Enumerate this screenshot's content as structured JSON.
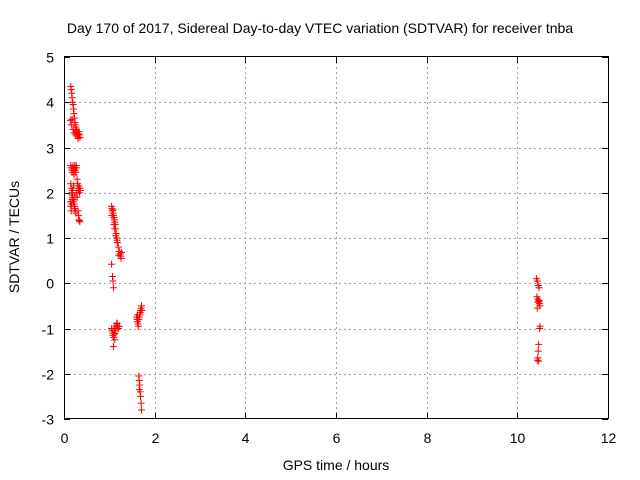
{
  "chart_data": {
    "type": "scatter",
    "title": "Day 170 of 2017, Sidereal Day-to-day VTEC variation (SDTVAR) for receiver tnba",
    "xlabel": "GPS time / hours",
    "ylabel": "SDTVAR / TECUs",
    "xlim": [
      0,
      12
    ],
    "ylim": [
      -3,
      5
    ],
    "xticks": [
      0,
      2,
      4,
      6,
      8,
      10,
      12
    ],
    "yticks": [
      -3,
      -2,
      -1,
      0,
      1,
      2,
      3,
      4,
      5
    ],
    "grid": true,
    "marker": "plus",
    "colors": {
      "marker": "#ff0000",
      "grid": "#a0a0a0",
      "axes": "#000000"
    },
    "series": [
      {
        "name": "SDTVAR",
        "points": [
          [
            0.15,
            4.35
          ],
          [
            0.16,
            4.28
          ],
          [
            0.17,
            4.2
          ],
          [
            0.18,
            4.1
          ],
          [
            0.19,
            4.0
          ],
          [
            0.2,
            3.95
          ],
          [
            0.21,
            3.85
          ],
          [
            0.22,
            3.75
          ],
          [
            0.23,
            3.65
          ],
          [
            0.24,
            3.55
          ],
          [
            0.25,
            3.5
          ],
          [
            0.26,
            3.45
          ],
          [
            0.27,
            3.4
          ],
          [
            0.28,
            3.35
          ],
          [
            0.29,
            3.3
          ],
          [
            0.3,
            3.25
          ],
          [
            0.31,
            3.2
          ],
          [
            0.32,
            3.3
          ],
          [
            0.33,
            3.35
          ],
          [
            0.34,
            3.28
          ],
          [
            0.35,
            3.22
          ],
          [
            0.14,
            3.6
          ],
          [
            0.16,
            3.5
          ],
          [
            0.18,
            3.62
          ],
          [
            0.2,
            3.4
          ],
          [
            0.22,
            3.32
          ],
          [
            0.26,
            3.28
          ],
          [
            0.28,
            3.38
          ],
          [
            0.15,
            2.6
          ],
          [
            0.16,
            2.55
          ],
          [
            0.17,
            2.5
          ],
          [
            0.18,
            2.45
          ],
          [
            0.19,
            2.55
          ],
          [
            0.2,
            2.6
          ],
          [
            0.21,
            2.5
          ],
          [
            0.22,
            2.4
          ],
          [
            0.23,
            2.55
          ],
          [
            0.24,
            2.6
          ],
          [
            0.25,
            2.5
          ],
          [
            0.26,
            2.45
          ],
          [
            0.27,
            2.6
          ],
          [
            0.28,
            2.55
          ],
          [
            0.29,
            2.3
          ],
          [
            0.3,
            2.2
          ],
          [
            0.31,
            2.1
          ],
          [
            0.32,
            2.05
          ],
          [
            0.33,
            2.15
          ],
          [
            0.34,
            2.0
          ],
          [
            0.35,
            2.1
          ],
          [
            0.36,
            2.05
          ],
          [
            0.15,
            2.2
          ],
          [
            0.16,
            2.1
          ],
          [
            0.17,
            2.0
          ],
          [
            0.18,
            1.95
          ],
          [
            0.19,
            1.9
          ],
          [
            0.2,
            1.85
          ],
          [
            0.21,
            1.8
          ],
          [
            0.22,
            1.75
          ],
          [
            0.23,
            1.7
          ],
          [
            0.24,
            1.65
          ],
          [
            0.25,
            1.6
          ],
          [
            0.26,
            1.55
          ],
          [
            0.14,
            1.8
          ],
          [
            0.15,
            1.7
          ],
          [
            0.16,
            1.6
          ],
          [
            0.17,
            1.75
          ],
          [
            0.18,
            1.85
          ],
          [
            0.19,
            2.05
          ],
          [
            0.21,
            2.15
          ],
          [
            0.24,
            1.9
          ],
          [
            0.27,
            2.0
          ],
          [
            0.29,
            1.9
          ],
          [
            0.31,
            1.6
          ],
          [
            0.32,
            1.5
          ],
          [
            0.33,
            1.4
          ],
          [
            0.34,
            1.38
          ],
          [
            0.35,
            1.36
          ],
          [
            1.05,
            1.7
          ],
          [
            1.06,
            1.65
          ],
          [
            1.07,
            1.6
          ],
          [
            1.08,
            1.55
          ],
          [
            1.09,
            1.5
          ],
          [
            1.1,
            1.45
          ],
          [
            1.11,
            1.4
          ],
          [
            1.12,
            1.35
          ],
          [
            1.13,
            1.3
          ],
          [
            1.14,
            1.2
          ],
          [
            1.15,
            1.1
          ],
          [
            1.16,
            1.0
          ],
          [
            1.17,
            0.95
          ],
          [
            1.18,
            0.9
          ],
          [
            1.2,
            0.8
          ],
          [
            1.22,
            0.7
          ],
          [
            1.24,
            0.65
          ],
          [
            1.25,
            0.6
          ],
          [
            1.26,
            0.55
          ],
          [
            1.27,
            0.68
          ],
          [
            1.06,
            1.5
          ],
          [
            1.08,
            1.62
          ],
          [
            1.1,
            1.3
          ],
          [
            1.12,
            1.2
          ],
          [
            1.14,
            1.05
          ],
          [
            1.21,
            0.62
          ],
          [
            1.05,
            0.42
          ],
          [
            1.07,
            0.15
          ],
          [
            1.08,
            0.05
          ],
          [
            1.09,
            -0.1
          ],
          [
            1.05,
            -1.0
          ],
          [
            1.06,
            -1.05
          ],
          [
            1.07,
            -1.1
          ],
          [
            1.08,
            -1.15
          ],
          [
            1.09,
            -1.2
          ],
          [
            1.1,
            -1.1
          ],
          [
            1.11,
            -1.0
          ],
          [
            1.12,
            -1.05
          ],
          [
            1.13,
            -1.12
          ],
          [
            1.14,
            -1.0
          ],
          [
            1.15,
            -0.95
          ],
          [
            1.16,
            -0.9
          ],
          [
            1.17,
            -0.88
          ],
          [
            1.18,
            -0.95
          ],
          [
            1.2,
            -1.0
          ],
          [
            1.22,
            -0.95
          ],
          [
            1.09,
            -1.4
          ],
          [
            1.12,
            -1.25
          ],
          [
            1.6,
            -0.75
          ],
          [
            1.61,
            -0.8
          ],
          [
            1.62,
            -0.85
          ],
          [
            1.63,
            -0.9
          ],
          [
            1.64,
            -0.95
          ],
          [
            1.65,
            -0.8
          ],
          [
            1.66,
            -0.75
          ],
          [
            1.67,
            -0.7
          ],
          [
            1.68,
            -0.65
          ],
          [
            1.69,
            -0.6
          ],
          [
            1.7,
            -0.55
          ],
          [
            1.71,
            -0.5
          ],
          [
            1.72,
            -0.6
          ],
          [
            1.62,
            -0.7
          ],
          [
            1.65,
            -2.05
          ],
          [
            1.66,
            -2.15
          ],
          [
            1.67,
            -2.25
          ],
          [
            1.68,
            -2.4
          ],
          [
            1.69,
            -2.5
          ],
          [
            1.7,
            -2.65
          ],
          [
            1.71,
            -2.8
          ],
          [
            1.66,
            -2.35
          ],
          [
            10.42,
            0.1
          ],
          [
            10.44,
            0.05
          ],
          [
            10.46,
            -0.05
          ],
          [
            10.48,
            -0.1
          ],
          [
            10.43,
            -0.3
          ],
          [
            10.45,
            -0.35
          ],
          [
            10.47,
            -0.4
          ],
          [
            10.49,
            -0.45
          ],
          [
            10.5,
            -0.5
          ],
          [
            10.44,
            -0.55
          ],
          [
            10.46,
            -0.42
          ],
          [
            10.48,
            -0.38
          ],
          [
            10.5,
            -0.95
          ],
          [
            10.49,
            -1.0
          ],
          [
            10.47,
            -1.35
          ],
          [
            10.46,
            -1.5
          ],
          [
            10.45,
            -1.65
          ],
          [
            10.44,
            -1.7
          ],
          [
            10.47,
            -1.72
          ]
        ]
      }
    ]
  }
}
